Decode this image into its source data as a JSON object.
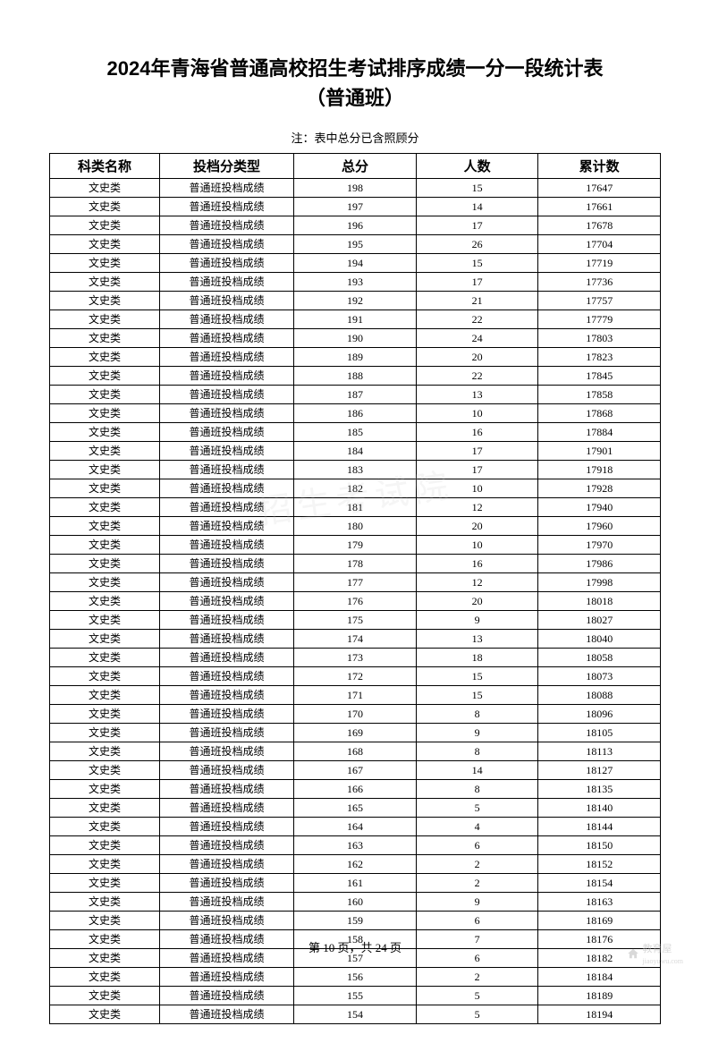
{
  "title_line1": "2024年青海省普通高校招生考试排序成绩一分一段统计表",
  "title_line2": "（普通班）",
  "note": "注：表中总分已含照顾分",
  "columns": [
    "科类名称",
    "投档分类型",
    "总分",
    "人数",
    "累计数"
  ],
  "category_value": "文史类",
  "type_value": "普通班投档成绩",
  "rows": [
    {
      "score": "198",
      "count": "15",
      "cumulative": "17647"
    },
    {
      "score": "197",
      "count": "14",
      "cumulative": "17661"
    },
    {
      "score": "196",
      "count": "17",
      "cumulative": "17678"
    },
    {
      "score": "195",
      "count": "26",
      "cumulative": "17704"
    },
    {
      "score": "194",
      "count": "15",
      "cumulative": "17719"
    },
    {
      "score": "193",
      "count": "17",
      "cumulative": "17736"
    },
    {
      "score": "192",
      "count": "21",
      "cumulative": "17757"
    },
    {
      "score": "191",
      "count": "22",
      "cumulative": "17779"
    },
    {
      "score": "190",
      "count": "24",
      "cumulative": "17803"
    },
    {
      "score": "189",
      "count": "20",
      "cumulative": "17823"
    },
    {
      "score": "188",
      "count": "22",
      "cumulative": "17845"
    },
    {
      "score": "187",
      "count": "13",
      "cumulative": "17858"
    },
    {
      "score": "186",
      "count": "10",
      "cumulative": "17868"
    },
    {
      "score": "185",
      "count": "16",
      "cumulative": "17884"
    },
    {
      "score": "184",
      "count": "17",
      "cumulative": "17901"
    },
    {
      "score": "183",
      "count": "17",
      "cumulative": "17918"
    },
    {
      "score": "182",
      "count": "10",
      "cumulative": "17928"
    },
    {
      "score": "181",
      "count": "12",
      "cumulative": "17940"
    },
    {
      "score": "180",
      "count": "20",
      "cumulative": "17960"
    },
    {
      "score": "179",
      "count": "10",
      "cumulative": "17970"
    },
    {
      "score": "178",
      "count": "16",
      "cumulative": "17986"
    },
    {
      "score": "177",
      "count": "12",
      "cumulative": "17998"
    },
    {
      "score": "176",
      "count": "20",
      "cumulative": "18018"
    },
    {
      "score": "175",
      "count": "9",
      "cumulative": "18027"
    },
    {
      "score": "174",
      "count": "13",
      "cumulative": "18040"
    },
    {
      "score": "173",
      "count": "18",
      "cumulative": "18058"
    },
    {
      "score": "172",
      "count": "15",
      "cumulative": "18073"
    },
    {
      "score": "171",
      "count": "15",
      "cumulative": "18088"
    },
    {
      "score": "170",
      "count": "8",
      "cumulative": "18096"
    },
    {
      "score": "169",
      "count": "9",
      "cumulative": "18105"
    },
    {
      "score": "168",
      "count": "8",
      "cumulative": "18113"
    },
    {
      "score": "167",
      "count": "14",
      "cumulative": "18127"
    },
    {
      "score": "166",
      "count": "8",
      "cumulative": "18135"
    },
    {
      "score": "165",
      "count": "5",
      "cumulative": "18140"
    },
    {
      "score": "164",
      "count": "4",
      "cumulative": "18144"
    },
    {
      "score": "163",
      "count": "6",
      "cumulative": "18150"
    },
    {
      "score": "162",
      "count": "2",
      "cumulative": "18152"
    },
    {
      "score": "161",
      "count": "2",
      "cumulative": "18154"
    },
    {
      "score": "160",
      "count": "9",
      "cumulative": "18163"
    },
    {
      "score": "159",
      "count": "6",
      "cumulative": "18169"
    },
    {
      "score": "158",
      "count": "7",
      "cumulative": "18176"
    },
    {
      "score": "157",
      "count": "6",
      "cumulative": "18182"
    },
    {
      "score": "156",
      "count": "2",
      "cumulative": "18184"
    },
    {
      "score": "155",
      "count": "5",
      "cumulative": "18189"
    },
    {
      "score": "154",
      "count": "5",
      "cumulative": "18194"
    }
  ],
  "page_info": "第 10 页，共 24 页",
  "watermark_text": "教育屋",
  "watermark_url": "jiaoyuwu.com",
  "watermark_center": "招生考试院"
}
